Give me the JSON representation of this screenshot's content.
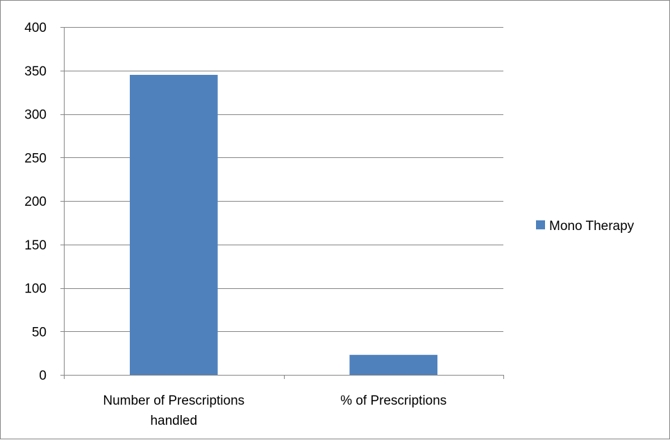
{
  "colors": {
    "series": "#4f81bd",
    "grid": "#868686",
    "axis": "#868686"
  },
  "chart_data": {
    "type": "bar",
    "title": "",
    "xlabel": "",
    "ylabel": "",
    "categories": [
      [
        "Number of Prescriptions",
        "handled"
      ],
      [
        "% of Prescriptions"
      ]
    ],
    "series": [
      {
        "name": "Mono Therapy",
        "values": [
          345,
          23
        ]
      }
    ],
    "ylim": [
      0,
      400
    ],
    "yticks": [
      0,
      50,
      100,
      150,
      200,
      250,
      300,
      350,
      400
    ],
    "grid": true,
    "legend": "right"
  }
}
